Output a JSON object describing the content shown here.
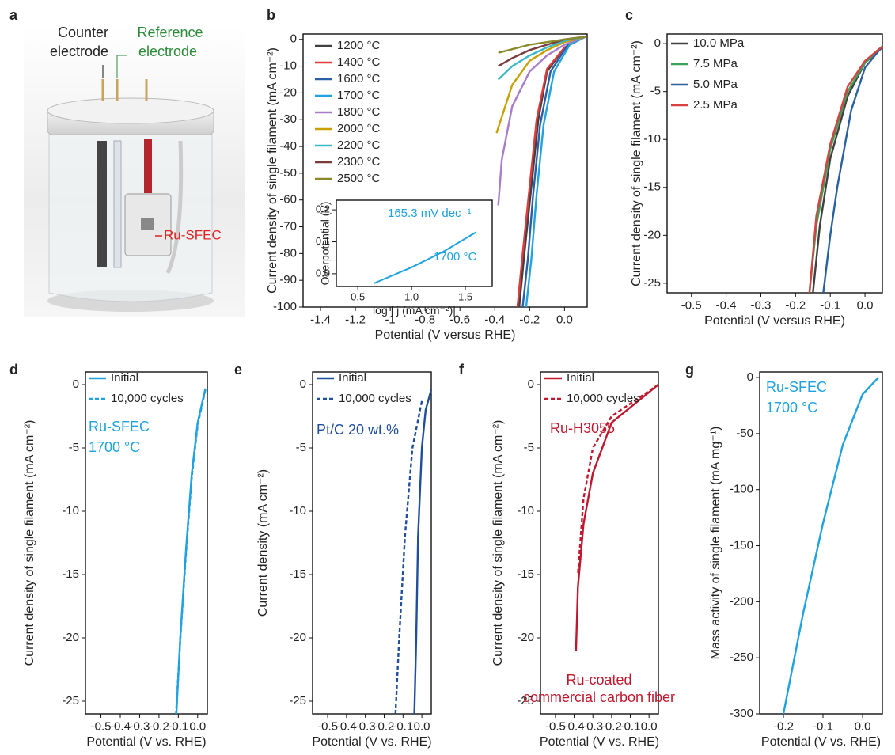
{
  "panel_a": {
    "label": "a",
    "counter_electrode": [
      "Counter",
      "electrode"
    ],
    "reference_electrode": [
      "Reference",
      "electrode"
    ],
    "sample_label": "Ru-SFEC"
  },
  "chart_data": [
    {
      "type": "line",
      "panel_label": "b",
      "x_label": "Potential (V versus RHE)",
      "y_label": "Current density of single filament (mA cm⁻²)",
      "xlim": [
        -1.5,
        0.13
      ],
      "ylim": [
        -100,
        2
      ],
      "xticks": [
        -1.4,
        -1.2,
        -1.0,
        -0.8,
        -0.6,
        -0.4,
        -0.2,
        {
          "value": 0,
          "label": "0.0"
        }
      ],
      "yticks": [
        0,
        -10,
        -20,
        -30,
        -40,
        -50,
        -60,
        -70,
        -80,
        -90,
        -100
      ],
      "legend": "upper left",
      "series": [
        {
          "name": "1200 °C",
          "color": "#404040",
          "x": [
            0.12,
            0.0,
            -0.1,
            -0.15,
            -0.19,
            -0.23,
            -0.26
          ],
          "values": [
            1,
            -3,
            -12,
            -30,
            -55,
            -80,
            -100
          ]
        },
        {
          "name": "1400 °C",
          "color": "#e03a3a",
          "x": [
            0.12,
            0.0,
            -0.1,
            -0.16,
            -0.2,
            -0.24,
            -0.27
          ],
          "values": [
            1,
            -3,
            -11,
            -30,
            -55,
            -80,
            -100
          ]
        },
        {
          "name": "1600 °C",
          "color": "#2a5fa8",
          "x": [
            0.12,
            0.02,
            -0.08,
            -0.14,
            -0.18,
            -0.21,
            -0.24
          ],
          "values": [
            1,
            -2,
            -12,
            -32,
            -58,
            -82,
            -100
          ]
        },
        {
          "name": "1700 °C",
          "color": "#1fa2e0",
          "x": [
            0.12,
            0.03,
            -0.06,
            -0.12,
            -0.16,
            -0.19,
            -0.22
          ],
          "values": [
            1,
            -2,
            -12,
            -32,
            -58,
            -82,
            -100
          ]
        },
        {
          "name": "1800 °C",
          "color": "#a77cc8",
          "x": [
            0.12,
            0.0,
            -0.1,
            -0.2,
            -0.3,
            -0.36,
            -0.38
          ],
          "values": [
            1,
            -2,
            -6,
            -12,
            -25,
            -45,
            -62
          ]
        },
        {
          "name": "2000 °C",
          "color": "#c9a000",
          "x": [
            0.12,
            0.0,
            -0.1,
            -0.2,
            -0.3,
            -0.39
          ],
          "values": [
            1,
            -1,
            -4,
            -8,
            -17,
            -35
          ]
        },
        {
          "name": "2200 °C",
          "color": "#3bb8c8",
          "x": [
            0.12,
            0.0,
            -0.1,
            -0.2,
            -0.3,
            -0.38
          ],
          "values": [
            1,
            -0.5,
            -3,
            -6,
            -10,
            -15
          ]
        },
        {
          "name": "2300 °C",
          "color": "#7a3b3b",
          "x": [
            0.12,
            0.0,
            -0.1,
            -0.2,
            -0.3,
            -0.38
          ],
          "values": [
            1,
            0,
            -2,
            -4,
            -7,
            -10
          ]
        },
        {
          "name": "2500 °C",
          "color": "#8a8a2a",
          "x": [
            0.12,
            0.0,
            -0.2,
            -0.38
          ],
          "values": [
            1,
            0,
            -2,
            -5
          ]
        }
      ],
      "inset": {
        "type": "line",
        "x_label": "log | j (mA cm⁻²)|",
        "y_label": "Overpotential (V)",
        "xlim": [
          0.3,
          1.75
        ],
        "ylim": [
          -0.04,
          0.23
        ],
        "xticks": [
          0.5,
          {
            "value": 1,
            "label": "1.0"
          },
          1.5
        ],
        "yticks": [
          {
            "value": 0,
            "label": "0.0"
          },
          0.1,
          0.2
        ],
        "series": [
          {
            "color": "#1fa2e0",
            "x": [
              0.65,
              1.0,
              1.3,
              1.6
            ],
            "values": [
              -0.03,
              0.02,
              0.07,
              0.13
            ]
          }
        ],
        "annotations": [
          {
            "text": "165.3 mV dec⁻¹",
            "color": "#1fa2e0"
          },
          {
            "text": "1700 °C",
            "color": "#1fa2e0"
          }
        ]
      }
    },
    {
      "type": "line",
      "panel_label": "c",
      "x_label": "Potential (V versus RHE)",
      "y_label": "Current density of single filament (mA cm⁻²)",
      "xlim": [
        -0.57,
        0.05
      ],
      "ylim": [
        -26,
        1
      ],
      "xticks": [
        -0.5,
        -0.4,
        -0.3,
        -0.2,
        -0.1,
        {
          "value": 0,
          "label": "0.0"
        }
      ],
      "yticks": [
        0,
        -5,
        -10,
        -15,
        -20,
        -25
      ],
      "legend": "upper left",
      "series": [
        {
          "name": "10.0 MPa",
          "color": "#404040",
          "x": [
            0.05,
            0.0,
            -0.05,
            -0.1,
            -0.13,
            -0.15
          ],
          "values": [
            -0.4,
            -2,
            -5.5,
            -12,
            -19,
            -26
          ]
        },
        {
          "name": "7.5 MPa",
          "color": "#3aa35a",
          "x": [
            0.05,
            0.0,
            -0.05,
            -0.1,
            -0.14,
            -0.16
          ],
          "values": [
            -0.3,
            -2,
            -5,
            -11,
            -19,
            -26
          ]
        },
        {
          "name": "5.0 MPa",
          "color": "#2a5fa0",
          "x": [
            0.05,
            0.0,
            -0.04,
            -0.08,
            -0.1,
            -0.12
          ],
          "values": [
            -0.3,
            -2.5,
            -7,
            -15,
            -20,
            -26
          ]
        },
        {
          "name": "2.5 MPa",
          "color": "#d94040",
          "x": [
            0.05,
            0.0,
            -0.05,
            -0.1,
            -0.14,
            -0.16
          ],
          "values": [
            -0.3,
            -1.8,
            -4.5,
            -10.5,
            -18,
            -26
          ]
        }
      ]
    },
    {
      "type": "line",
      "panel_label": "d",
      "x_label": "Potential (V vs. RHE)",
      "y_label": "Current density of single filament (mA cm⁻²)",
      "xlim": [
        -0.58,
        0.05
      ],
      "ylim": [
        -26,
        1
      ],
      "xticks": [
        -0.5,
        -0.4,
        -0.3,
        -0.2,
        -0.1,
        {
          "value": 0,
          "label": "0.0"
        }
      ],
      "yticks": [
        0,
        -5,
        -10,
        -15,
        -20,
        -25
      ],
      "legend": "upper left",
      "series": [
        {
          "name": "Initial",
          "color": "#1fa2e0",
          "line_style": "solid",
          "x": [
            0.04,
            0.0,
            -0.03,
            -0.06,
            -0.09,
            -0.11
          ],
          "values": [
            -0.3,
            -3,
            -7,
            -13,
            -20,
            -26
          ]
        },
        {
          "name": "10,000 cycles",
          "color": "#1fa2e0",
          "line_style": "dashed",
          "x": [
            0.04,
            0.0,
            -0.03,
            -0.06,
            -0.09,
            -0.112
          ],
          "values": [
            -0.4,
            -3.2,
            -7.3,
            -13.3,
            -20.2,
            -26
          ]
        }
      ],
      "annotations": [
        {
          "text": "Ru-SFEC",
          "color": "#1fa2e0"
        },
        {
          "text": "1700 °C",
          "color": "#1fa2e0"
        }
      ]
    },
    {
      "type": "line",
      "panel_label": "e",
      "x_label": "Potential (V vs. RHE)",
      "y_label": "Current density (mA cm⁻²)",
      "xlim": [
        -0.58,
        0.05
      ],
      "ylim": [
        -26,
        1
      ],
      "xticks": [
        -0.5,
        -0.4,
        -0.3,
        -0.2,
        -0.1,
        {
          "value": 0,
          "label": "0.0"
        }
      ],
      "yticks": [
        0,
        -5,
        -10,
        -15,
        -20,
        -25
      ],
      "legend": "upper left",
      "series": [
        {
          "name": "Initial",
          "color": "#1f4e9c",
          "line_style": "solid",
          "x": [
            0.05,
            0.02,
            0.0,
            -0.02,
            -0.03,
            -0.04
          ],
          "values": [
            -0.4,
            -2,
            -5,
            -12,
            -20,
            -26
          ]
        },
        {
          "name": "10,000 cycles",
          "color": "#1f4e9c",
          "line_style": "dashed",
          "x": [
            0.0,
            -0.05,
            -0.09,
            -0.12,
            -0.14
          ],
          "values": [
            -1.3,
            -5,
            -12,
            -20,
            -26
          ]
        }
      ],
      "annotations": [
        {
          "text": "Pt/C 20 wt.%",
          "color": "#1f4e9c"
        }
      ]
    },
    {
      "type": "line",
      "panel_label": "f",
      "x_label": "Potential (V vs. RHE)",
      "y_label": "Current density of single filament (mA cm⁻²)",
      "xlim": [
        -0.58,
        0.05
      ],
      "ylim": [
        -26,
        1
      ],
      "xticks": [
        -0.5,
        -0.4,
        -0.3,
        -0.2,
        -0.1,
        {
          "value": 0,
          "label": "0.0"
        }
      ],
      "yticks": [
        0,
        -5,
        -10,
        -15,
        -20,
        -25
      ],
      "legend": "upper left",
      "series": [
        {
          "name": "Initial",
          "color": "#c0182e",
          "line_style": "solid",
          "x": [
            0.05,
            -0.1,
            -0.2,
            -0.3,
            -0.35,
            -0.38,
            -0.39
          ],
          "values": [
            0,
            -1.8,
            -3,
            -7,
            -11,
            -16,
            -21
          ]
        },
        {
          "name": "10,000 cycles",
          "color": "#c0182e",
          "line_style": "dashed",
          "x": [
            0.05,
            -0.1,
            -0.2,
            -0.3,
            -0.35,
            -0.38
          ],
          "values": [
            0,
            -1.5,
            -2.5,
            -5,
            -9,
            -15
          ]
        }
      ],
      "annotations": [
        {
          "text": "Ru-H3055",
          "color": "#c0182e"
        },
        {
          "text": "Ru-coated",
          "color": "#c0182e"
        },
        {
          "text": "commercial carbon fiber",
          "color": "#c0182e"
        }
      ]
    },
    {
      "type": "line",
      "panel_label": "g",
      "x_label": "Potential (V vs. RHE)",
      "y_label": "Mass activity of single filament (mA mg⁻¹)",
      "xlim": [
        -0.26,
        0.05
      ],
      "ylim": [
        -300,
        5
      ],
      "xticks": [
        -0.2,
        -0.1,
        {
          "value": 0,
          "label": "0.0"
        }
      ],
      "yticks": [
        0,
        -50,
        -100,
        -150,
        -200,
        -250,
        -300
      ],
      "series": [
        {
          "color": "#1fa2e0",
          "x": [
            0.04,
            0.0,
            -0.05,
            -0.1,
            -0.15,
            -0.2
          ],
          "values": [
            0,
            -15,
            -60,
            -130,
            -210,
            -300
          ]
        }
      ],
      "annotations": [
        {
          "text": "Ru-SFEC",
          "color": "#1fa2e0"
        },
        {
          "text": "1700 °C",
          "color": "#1fa2e0"
        }
      ]
    }
  ]
}
